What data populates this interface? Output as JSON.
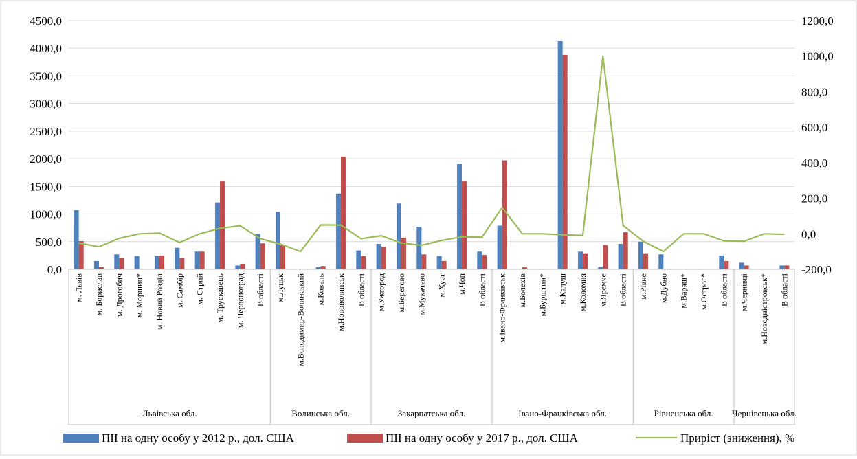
{
  "chart_data": {
    "type": "bar+line",
    "title": "",
    "y_left": {
      "min": 0,
      "max": 4500,
      "step": 500,
      "ticks": [
        "0,0",
        "500,0",
        "1000,0",
        "1500,0",
        "2000,0",
        "2500,0",
        "3000,0",
        "3500,0",
        "4000,0",
        "4500,0"
      ]
    },
    "y_right": {
      "min": -200,
      "max": 1200,
      "step": 200,
      "ticks": [
        "-200,0",
        "0,0",
        "200,0",
        "400,0",
        "600,0",
        "800,0",
        "1000,0",
        "1200,0"
      ]
    },
    "grid": true,
    "legend_position": "bottom",
    "categories": [
      "м. Львів",
      "м. Борислав",
      "м. Дрогобич",
      "м. Моршин*",
      "м. Новий Розділ",
      "м. Самбір",
      "м. Стрий",
      "м. Трускавець",
      "м. Червоноград",
      "В області",
      "м.Луцьк",
      "м.Володимир-Волинський",
      "м.Ковель",
      "м.Нововолинськ",
      "В області",
      "м.Ужгород",
      "м.Берегово",
      "м.Мукачево",
      "м.Хуст",
      "м.Чоп",
      "В області",
      "м.Івано-Франківськ",
      "м.Болехів",
      "м.Бурштин*",
      "м.Калуш",
      "м.Коломия",
      "м.Яремче",
      "В області",
      "м.Рівне",
      "м.Дубно",
      "м.Вараш*",
      "м.Острог*",
      "В області",
      "м.Чернівці",
      "м.Новодністровськ*",
      "В області"
    ],
    "groups": [
      {
        "label": "Львівська обл.",
        "count": 10
      },
      {
        "label": "Волинська обл.",
        "count": 5
      },
      {
        "label": "Закарпатська обл.",
        "count": 6
      },
      {
        "label": "Івано-Франківська обл.",
        "count": 7
      },
      {
        "label": "Рівненська обл.",
        "count": 5
      },
      {
        "label": "Чернівецька обл.",
        "count": 3
      }
    ],
    "series": [
      {
        "name": "ПІІ на одну особу у 2012 р., дол. США",
        "type": "bar",
        "axis": "left",
        "color": "#4F81BD",
        "values": [
          1070,
          150,
          270,
          240,
          240,
          390,
          320,
          1210,
          70,
          640,
          1040,
          0,
          40,
          1370,
          340,
          460,
          1190,
          770,
          240,
          1910,
          320,
          790,
          0,
          0,
          4130,
          320,
          40,
          460,
          500,
          270,
          0,
          0,
          250,
          120,
          0,
          70
        ]
      },
      {
        "name": "ПІІ на одну особу у 2017 р., дол. США",
        "type": "bar",
        "axis": "left",
        "color": "#C0504D",
        "values": [
          510,
          40,
          200,
          0,
          250,
          200,
          320,
          1590,
          100,
          470,
          440,
          0,
          60,
          2040,
          240,
          410,
          570,
          270,
          150,
          1590,
          260,
          1970,
          40,
          0,
          3880,
          290,
          440,
          670,
          290,
          0,
          0,
          0,
          150,
          70,
          0,
          70
        ]
      },
      {
        "name": "Приріст (зниження), %",
        "type": "line",
        "axis": "right",
        "color": "#9BBB59",
        "values": [
          -52,
          -73,
          -26,
          0,
          4,
          -49,
          0,
          31,
          45,
          -27,
          -58,
          -100,
          50,
          49,
          -28,
          -11,
          -52,
          -65,
          -37,
          -17,
          -19,
          149,
          0,
          0,
          -6,
          -9,
          1000,
          46,
          -42,
          -100,
          0,
          0,
          -40,
          -42,
          0,
          -3
        ]
      }
    ]
  }
}
